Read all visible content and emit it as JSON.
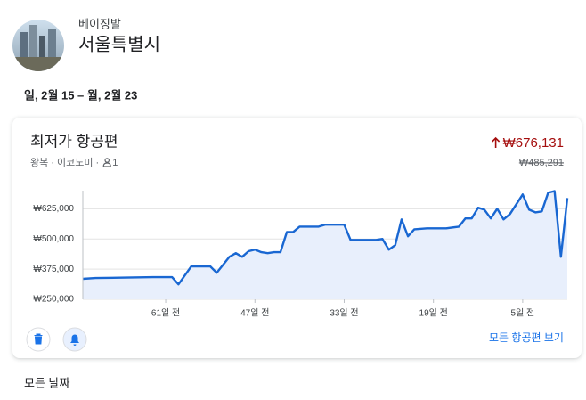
{
  "header": {
    "origin": "베이징발",
    "destination": "서울특별시"
  },
  "dates": "일, 2월 15 – 월, 2월 23",
  "card": {
    "title": "최저가 항공편",
    "current_price": "₩676,131",
    "trip_details": "왕복 · 이코노미 ·",
    "passengers": "1",
    "previous_price": "₩485,291",
    "link": "모든 항공편 보기"
  },
  "footer_label": "모든 날짜",
  "chart_data": {
    "type": "line",
    "color": "#1967d2",
    "area_color": "#e8effc",
    "grid": true,
    "x": [
      -74,
      -72,
      -63,
      -60,
      -59,
      -57,
      -54,
      -53,
      -51,
      -50,
      -49,
      -48,
      -47,
      -46,
      -45,
      -44,
      -43,
      -42,
      -41,
      -40,
      -37,
      -36,
      -33,
      -32,
      -28,
      -27,
      -26,
      -25,
      -24,
      -23,
      -22,
      -20,
      -19,
      -17,
      -15,
      -14,
      -13,
      -12,
      -11,
      -10,
      -9,
      -8,
      -7,
      -5,
      -4,
      -3,
      -2,
      -1,
      0,
      1,
      2
    ],
    "values": [
      335000,
      338000,
      342000,
      342000,
      312000,
      386000,
      386000,
      360000,
      426000,
      441000,
      426000,
      449000,
      456000,
      445000,
      441000,
      445000,
      445000,
      529000,
      529000,
      551000,
      551000,
      559000,
      559000,
      496000,
      496000,
      500000,
      456000,
      474000,
      581000,
      511000,
      540000,
      544000,
      544000,
      544000,
      551000,
      585000,
      585000,
      629000,
      621000,
      585000,
      625000,
      581000,
      603000,
      684000,
      621000,
      610000,
      614000,
      691000,
      698000,
      426000,
      669000
    ],
    "xlim": [
      -74,
      2
    ],
    "ylim": [
      250000,
      700000
    ],
    "xticks": [
      {
        "value": -61,
        "label": "61일 전"
      },
      {
        "value": -47,
        "label": "47일 전"
      },
      {
        "value": -33,
        "label": "33일 전"
      },
      {
        "value": -19,
        "label": "19일 전"
      },
      {
        "value": -5,
        "label": "5일 전"
      }
    ],
    "yticks": [
      {
        "value": 250000,
        "label": "₩250,000"
      },
      {
        "value": 375000,
        "label": "₩375,000"
      },
      {
        "value": 500000,
        "label": "₩500,000"
      },
      {
        "value": 625000,
        "label": "₩625,000"
      }
    ]
  }
}
